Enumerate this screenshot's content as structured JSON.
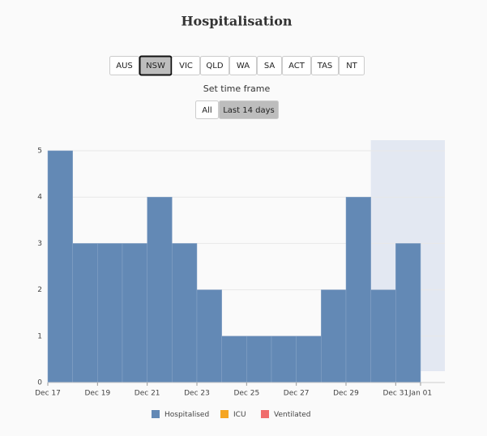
{
  "header": {
    "title": "Hospitalisation"
  },
  "state_selector": {
    "options": [
      "AUS",
      "NSW",
      "VIC",
      "QLD",
      "WA",
      "SA",
      "ACT",
      "TAS",
      "NT"
    ],
    "selected": 1
  },
  "time_frame": {
    "label": "Set time frame",
    "options": [
      "All",
      "Last 14 days"
    ],
    "selected": 1
  },
  "chart_data": {
    "type": "bar",
    "categories": [
      "Dec 17",
      null,
      "Dec 19",
      null,
      "Dec 21",
      null,
      "Dec 23",
      null,
      "Dec 25",
      null,
      "Dec 27",
      null,
      "Dec 29",
      null,
      "Dec 31"
    ],
    "x_end_label": "Jan 01",
    "series": [
      {
        "name": "Hospitalised",
        "color": "#6389b5",
        "values": [
          5,
          3,
          3,
          3,
          4,
          3,
          2,
          1,
          1,
          1,
          1,
          2,
          4,
          2,
          3
        ]
      },
      {
        "name": "ICU",
        "color": "#f5a623"
      },
      {
        "name": "Ventilated",
        "color": "#f06d6d"
      }
    ],
    "ylim": [
      0,
      5
    ],
    "yticks": [
      0,
      1,
      2,
      3,
      4,
      5
    ],
    "grid": true,
    "highlight_start": 13,
    "highlight_color": "#e3e8f2"
  }
}
